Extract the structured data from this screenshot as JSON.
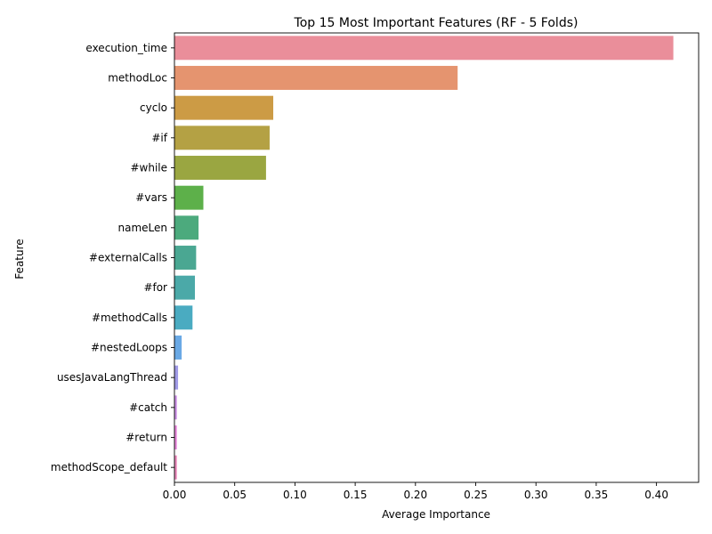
{
  "chart_data": {
    "type": "bar",
    "orientation": "horizontal",
    "title": "Top 15 Most Important Features (RF - 5 Folds)",
    "xlabel": "Average Importance",
    "ylabel": "Feature",
    "xlim": [
      0,
      0.435
    ],
    "xticks": [
      0.0,
      0.05,
      0.1,
      0.15,
      0.2,
      0.25,
      0.3,
      0.35,
      0.4
    ],
    "xtick_labels": [
      "0.00",
      "0.05",
      "0.10",
      "0.15",
      "0.20",
      "0.25",
      "0.30",
      "0.35",
      "0.40"
    ],
    "grid": false,
    "categories": [
      "execution_time",
      "methodLoc",
      "cyclo",
      "#if",
      "#while",
      "#vars",
      "nameLen",
      "#externalCalls",
      "#for",
      "#methodCalls",
      "#nestedLoops",
      "usesJavaLangThread",
      "#catch",
      "#return",
      "methodScope_default"
    ],
    "values": [
      0.414,
      0.235,
      0.082,
      0.079,
      0.076,
      0.024,
      0.02,
      0.018,
      0.017,
      0.015,
      0.006,
      0.003,
      0.002,
      0.002,
      0.002
    ],
    "colors": [
      "#ea8e9a",
      "#e5946f",
      "#cc9b45",
      "#b4a144",
      "#9aa641",
      "#5db04a",
      "#4caa7d",
      "#4aa792",
      "#4ba9a8",
      "#4aabc1",
      "#6aa9e5",
      "#9f9ae6",
      "#c98ee3",
      "#e485d8",
      "#e886b8"
    ]
  }
}
